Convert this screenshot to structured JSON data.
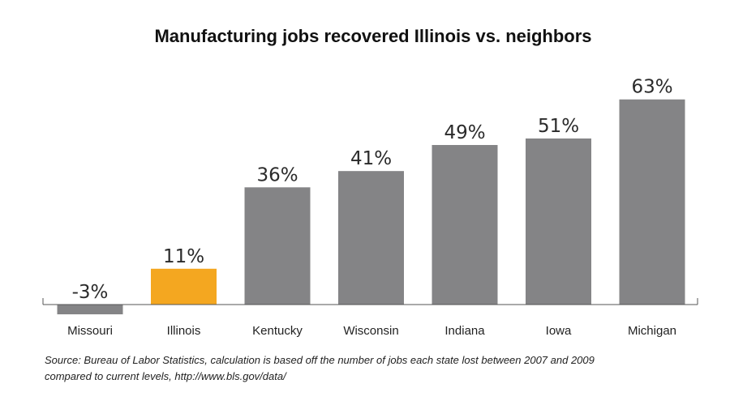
{
  "chart_data": {
    "type": "bar",
    "title": "Manufacturing jobs recovered Illinois vs. neighbors",
    "categories": [
      "Missouri",
      "Illinois",
      "Kentucky",
      "Wisconsin",
      "Indiana",
      "Iowa",
      "Michigan"
    ],
    "values": [
      -3,
      11,
      36,
      41,
      49,
      51,
      63
    ],
    "value_labels": [
      "-3%",
      "11%",
      "36%",
      "41%",
      "49%",
      "51%",
      "63%"
    ],
    "ylim": [
      -3,
      63
    ],
    "grid": false,
    "colors": {
      "default_bar": "#848486",
      "highlight_bar": "#f4a720",
      "axis": "#555555"
    },
    "highlight_category": "Illinois",
    "source_note": [
      "Source: Bureau of Labor Statistics, calculation is based off the number of jobs each state lost between 2007 and 2009",
      "compared to current levels, http://www.bls.gov/data/"
    ]
  }
}
